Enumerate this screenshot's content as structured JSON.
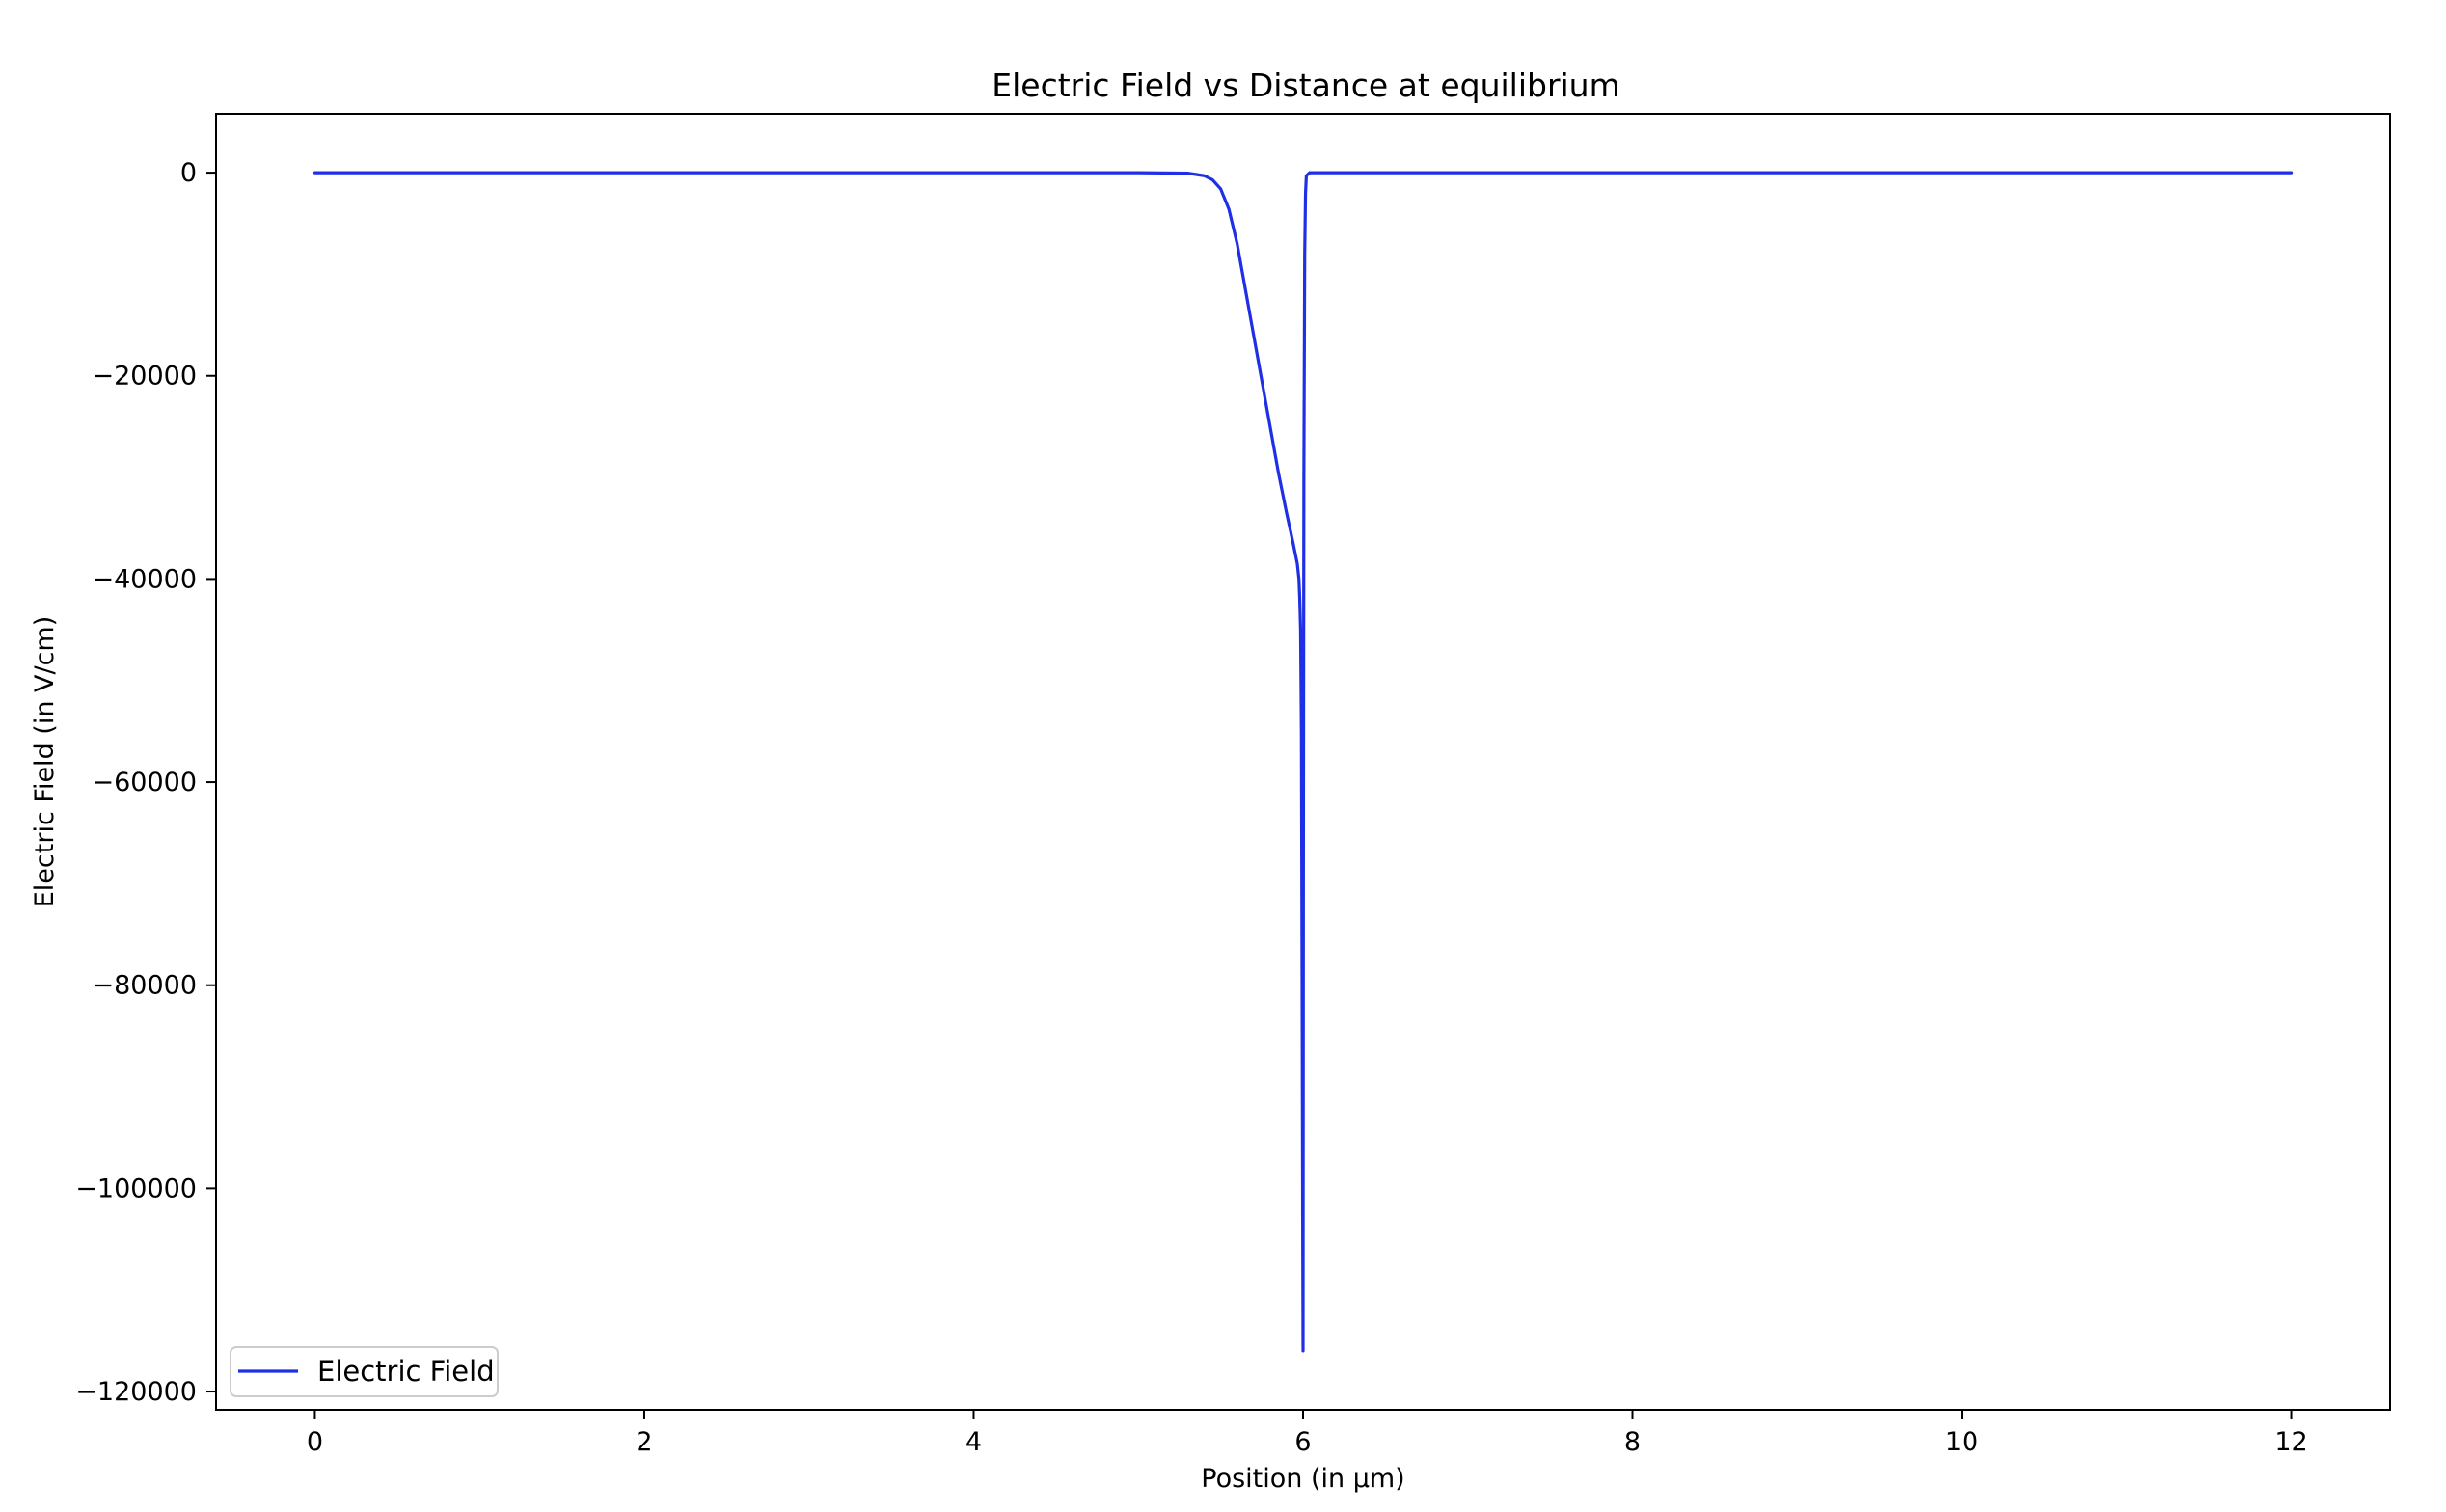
{
  "chart_data": {
    "type": "line",
    "title": "Electric Field vs Distance at equilibrium",
    "xlabel": "Position (in µm)",
    "ylabel": "Electric Field (in V/cm)",
    "xlim": [
      -0.6,
      12.6
    ],
    "ylim": [
      -121800,
      5800
    ],
    "x_ticks": [
      0,
      2,
      4,
      6,
      8,
      10,
      12
    ],
    "y_ticks": [
      0,
      -20000,
      -40000,
      -60000,
      -80000,
      -100000,
      -120000
    ],
    "x_tick_labels": [
      "0",
      "2",
      "4",
      "6",
      "8",
      "10",
      "12"
    ],
    "y_tick_labels": [
      "0",
      "−20000",
      "−40000",
      "−60000",
      "−80000",
      "−100000",
      "−120000"
    ],
    "grid": false,
    "legend": {
      "position": "lower-left"
    },
    "series": [
      {
        "name": "Electric Field",
        "color": "#1f2fe6",
        "x": [
          0,
          5.0,
          5.3,
          5.4,
          5.45,
          5.5,
          5.55,
          5.6,
          5.65,
          5.7,
          5.75,
          5.8,
          5.85,
          5.9,
          5.94,
          5.965,
          5.975,
          5.98,
          5.985,
          5.99,
          5.995,
          5.998,
          6.0,
          6.002,
          6.005,
          6.01,
          6.015,
          6.02,
          6.04,
          12
        ],
        "y": [
          0,
          0,
          -50,
          -300,
          -700,
          -1600,
          -3600,
          -7000,
          -11500,
          -16000,
          -20500,
          -25000,
          -29500,
          -33500,
          -36500,
          -38500,
          -40000,
          -42000,
          -45000,
          -55000,
          -85000,
          -105000,
          -116000,
          -70000,
          -30000,
          -8000,
          -2000,
          -300,
          0,
          0
        ]
      }
    ]
  }
}
